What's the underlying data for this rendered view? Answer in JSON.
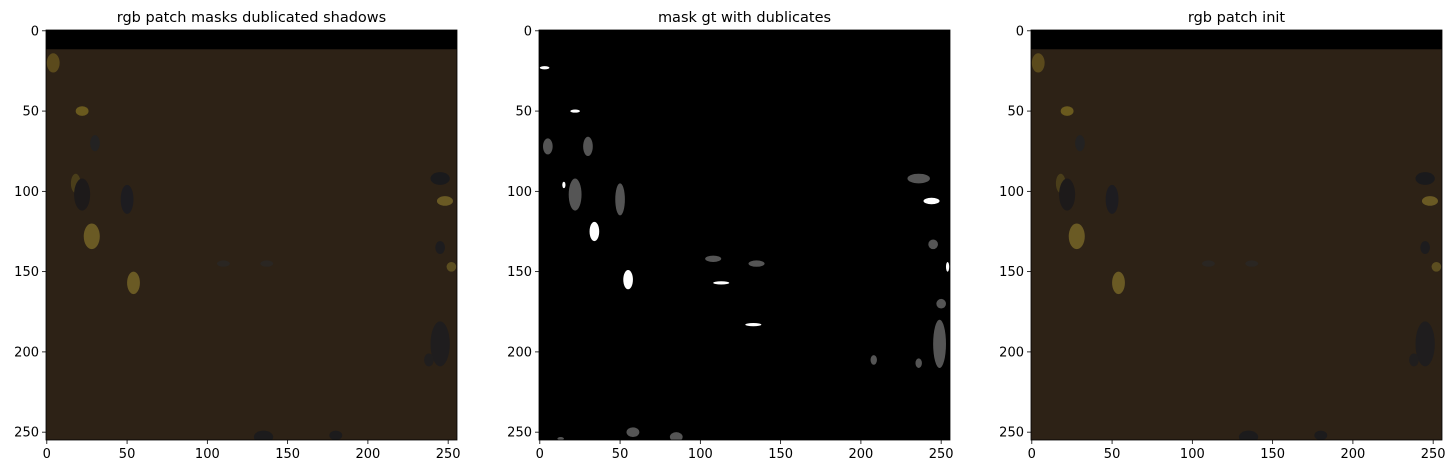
{
  "figure": {
    "background": "#ffffff",
    "panel_count": 3
  },
  "chart_data": [
    {
      "type": "heatmap",
      "render": "image",
      "title": "rgb patch masks dublicated shadows",
      "xlabel": "",
      "ylabel": "",
      "xlim": [
        0,
        255
      ],
      "ylim": [
        255,
        0
      ],
      "x_ticks": [
        "0",
        "50",
        "100",
        "150",
        "200",
        "250"
      ],
      "y_ticks": [
        "0",
        "50",
        "100",
        "150",
        "200",
        "250"
      ],
      "image_size": [
        256,
        256
      ],
      "base_color": "#2d2216",
      "top_band": {
        "y_range": [
          0,
          11
        ],
        "color": "#000000"
      },
      "blobs": [
        {
          "x": 4,
          "y": 20,
          "rx": 4,
          "ry": 6,
          "color": "#5b4a1c"
        },
        {
          "x": 22,
          "y": 50,
          "rx": 4,
          "ry": 3,
          "color": "#6a5a1e"
        },
        {
          "x": 28,
          "y": 128,
          "rx": 5,
          "ry": 8,
          "color": "#6a5a24"
        },
        {
          "x": 54,
          "y": 157,
          "rx": 4,
          "ry": 7,
          "color": "#6a5a24"
        },
        {
          "x": 18,
          "y": 95,
          "rx": 3,
          "ry": 6,
          "color": "#4a3e1a"
        },
        {
          "x": 22,
          "y": 102,
          "rx": 5,
          "ry": 10,
          "color": "#1d1a1a"
        },
        {
          "x": 50,
          "y": 105,
          "rx": 4,
          "ry": 9,
          "color": "#1d1c20"
        },
        {
          "x": 30,
          "y": 70,
          "rx": 3,
          "ry": 5,
          "color": "#232222"
        },
        {
          "x": 245,
          "y": 92,
          "rx": 6,
          "ry": 4,
          "color": "#1a1a1c"
        },
        {
          "x": 248,
          "y": 106,
          "rx": 5,
          "ry": 3,
          "color": "#6a5a24"
        },
        {
          "x": 245,
          "y": 135,
          "rx": 3,
          "ry": 4,
          "color": "#1d1c1e"
        },
        {
          "x": 252,
          "y": 147,
          "rx": 3,
          "ry": 3,
          "color": "#5c4e20"
        },
        {
          "x": 245,
          "y": 195,
          "rx": 6,
          "ry": 14,
          "color": "#1f1d1e"
        },
        {
          "x": 238,
          "y": 205,
          "rx": 3,
          "ry": 4,
          "color": "#201e1e"
        },
        {
          "x": 135,
          "y": 253,
          "rx": 6,
          "ry": 4,
          "color": "#1c1b1c"
        },
        {
          "x": 110,
          "y": 145,
          "rx": 4,
          "ry": 2,
          "color": "#2a2622"
        },
        {
          "x": 137,
          "y": 145,
          "rx": 4,
          "ry": 2,
          "color": "#2a2622"
        },
        {
          "x": 180,
          "y": 252,
          "rx": 4,
          "ry": 3,
          "color": "#1c1b1c"
        }
      ]
    },
    {
      "type": "heatmap",
      "render": "image",
      "title": "mask gt with dublicates",
      "xlabel": "",
      "ylabel": "",
      "xlim": [
        0,
        255
      ],
      "ylim": [
        255,
        0
      ],
      "x_ticks": [
        "0",
        "50",
        "100",
        "150",
        "200",
        "250"
      ],
      "y_ticks": [
        "0",
        "50",
        "100",
        "150",
        "200",
        "250"
      ],
      "image_size": [
        256,
        256
      ],
      "base_color": "#000000",
      "top_band": null,
      "blobs": [
        {
          "x": 3,
          "y": 23,
          "rx": 3,
          "ry": 1,
          "color": "#ffffff"
        },
        {
          "x": 22,
          "y": 50,
          "rx": 3,
          "ry": 1,
          "color": "#ffffff"
        },
        {
          "x": 15,
          "y": 96,
          "rx": 1,
          "ry": 2,
          "color": "#ffffff"
        },
        {
          "x": 34,
          "y": 125,
          "rx": 3,
          "ry": 6,
          "color": "#ffffff"
        },
        {
          "x": 55,
          "y": 155,
          "rx": 3,
          "ry": 6,
          "color": "#ffffff"
        },
        {
          "x": 113,
          "y": 157,
          "rx": 5,
          "ry": 1,
          "color": "#ffffff"
        },
        {
          "x": 133,
          "y": 183,
          "rx": 5,
          "ry": 1,
          "color": "#ffffff"
        },
        {
          "x": 244,
          "y": 106,
          "rx": 5,
          "ry": 2,
          "color": "#ffffff"
        },
        {
          "x": 254,
          "y": 147,
          "rx": 1,
          "ry": 3,
          "color": "#ffffff"
        },
        {
          "x": 5,
          "y": 72,
          "rx": 3,
          "ry": 5,
          "color": "#555555"
        },
        {
          "x": 30,
          "y": 72,
          "rx": 3,
          "ry": 6,
          "color": "#555555"
        },
        {
          "x": 22,
          "y": 102,
          "rx": 4,
          "ry": 10,
          "color": "#555555"
        },
        {
          "x": 50,
          "y": 105,
          "rx": 3,
          "ry": 10,
          "color": "#555555"
        },
        {
          "x": 108,
          "y": 142,
          "rx": 5,
          "ry": 2,
          "color": "#555555"
        },
        {
          "x": 135,
          "y": 145,
          "rx": 5,
          "ry": 2,
          "color": "#555555"
        },
        {
          "x": 236,
          "y": 92,
          "rx": 7,
          "ry": 3,
          "color": "#555555"
        },
        {
          "x": 245,
          "y": 133,
          "rx": 3,
          "ry": 3,
          "color": "#555555"
        },
        {
          "x": 250,
          "y": 170,
          "rx": 3,
          "ry": 3,
          "color": "#555555"
        },
        {
          "x": 249,
          "y": 195,
          "rx": 4,
          "ry": 15,
          "color": "#555555"
        },
        {
          "x": 208,
          "y": 205,
          "rx": 2,
          "ry": 3,
          "color": "#555555"
        },
        {
          "x": 236,
          "y": 207,
          "rx": 2,
          "ry": 3,
          "color": "#555555"
        },
        {
          "x": 58,
          "y": 250,
          "rx": 4,
          "ry": 3,
          "color": "#555555"
        },
        {
          "x": 85,
          "y": 253,
          "rx": 4,
          "ry": 3,
          "color": "#555555"
        },
        {
          "x": 13,
          "y": 254,
          "rx": 2,
          "ry": 1,
          "color": "#555555"
        }
      ]
    },
    {
      "type": "heatmap",
      "render": "image",
      "title": "rgb patch init",
      "xlabel": "",
      "ylabel": "",
      "xlim": [
        0,
        255
      ],
      "ylim": [
        255,
        0
      ],
      "x_ticks": [
        "0",
        "50",
        "100",
        "150",
        "200",
        "250"
      ],
      "y_ticks": [
        "0",
        "50",
        "100",
        "150",
        "200",
        "250"
      ],
      "image_size": [
        256,
        256
      ],
      "base_color": "#2d2216",
      "top_band": {
        "y_range": [
          0,
          11
        ],
        "color": "#000000"
      },
      "blobs": [
        {
          "x": 4,
          "y": 20,
          "rx": 4,
          "ry": 6,
          "color": "#5b4a1c"
        },
        {
          "x": 22,
          "y": 50,
          "rx": 4,
          "ry": 3,
          "color": "#6a5a1e"
        },
        {
          "x": 28,
          "y": 128,
          "rx": 5,
          "ry": 8,
          "color": "#6a5a24"
        },
        {
          "x": 54,
          "y": 157,
          "rx": 4,
          "ry": 7,
          "color": "#6a5a24"
        },
        {
          "x": 18,
          "y": 95,
          "rx": 3,
          "ry": 6,
          "color": "#4a3e1a"
        },
        {
          "x": 22,
          "y": 102,
          "rx": 5,
          "ry": 10,
          "color": "#1d1a1a"
        },
        {
          "x": 50,
          "y": 105,
          "rx": 4,
          "ry": 9,
          "color": "#1d1c20"
        },
        {
          "x": 30,
          "y": 70,
          "rx": 3,
          "ry": 5,
          "color": "#232222"
        },
        {
          "x": 245,
          "y": 92,
          "rx": 6,
          "ry": 4,
          "color": "#1a1a1c"
        },
        {
          "x": 248,
          "y": 106,
          "rx": 5,
          "ry": 3,
          "color": "#6a5a24"
        },
        {
          "x": 245,
          "y": 135,
          "rx": 3,
          "ry": 4,
          "color": "#1d1c1e"
        },
        {
          "x": 252,
          "y": 147,
          "rx": 3,
          "ry": 3,
          "color": "#5c4e20"
        },
        {
          "x": 245,
          "y": 195,
          "rx": 6,
          "ry": 14,
          "color": "#1f1d1e"
        },
        {
          "x": 238,
          "y": 205,
          "rx": 3,
          "ry": 4,
          "color": "#201e1e"
        },
        {
          "x": 135,
          "y": 253,
          "rx": 6,
          "ry": 4,
          "color": "#1c1b1c"
        },
        {
          "x": 110,
          "y": 145,
          "rx": 4,
          "ry": 2,
          "color": "#2a2622"
        },
        {
          "x": 137,
          "y": 145,
          "rx": 4,
          "ry": 2,
          "color": "#2a2622"
        },
        {
          "x": 180,
          "y": 252,
          "rx": 4,
          "ry": 3,
          "color": "#1c1b1c"
        }
      ]
    }
  ]
}
